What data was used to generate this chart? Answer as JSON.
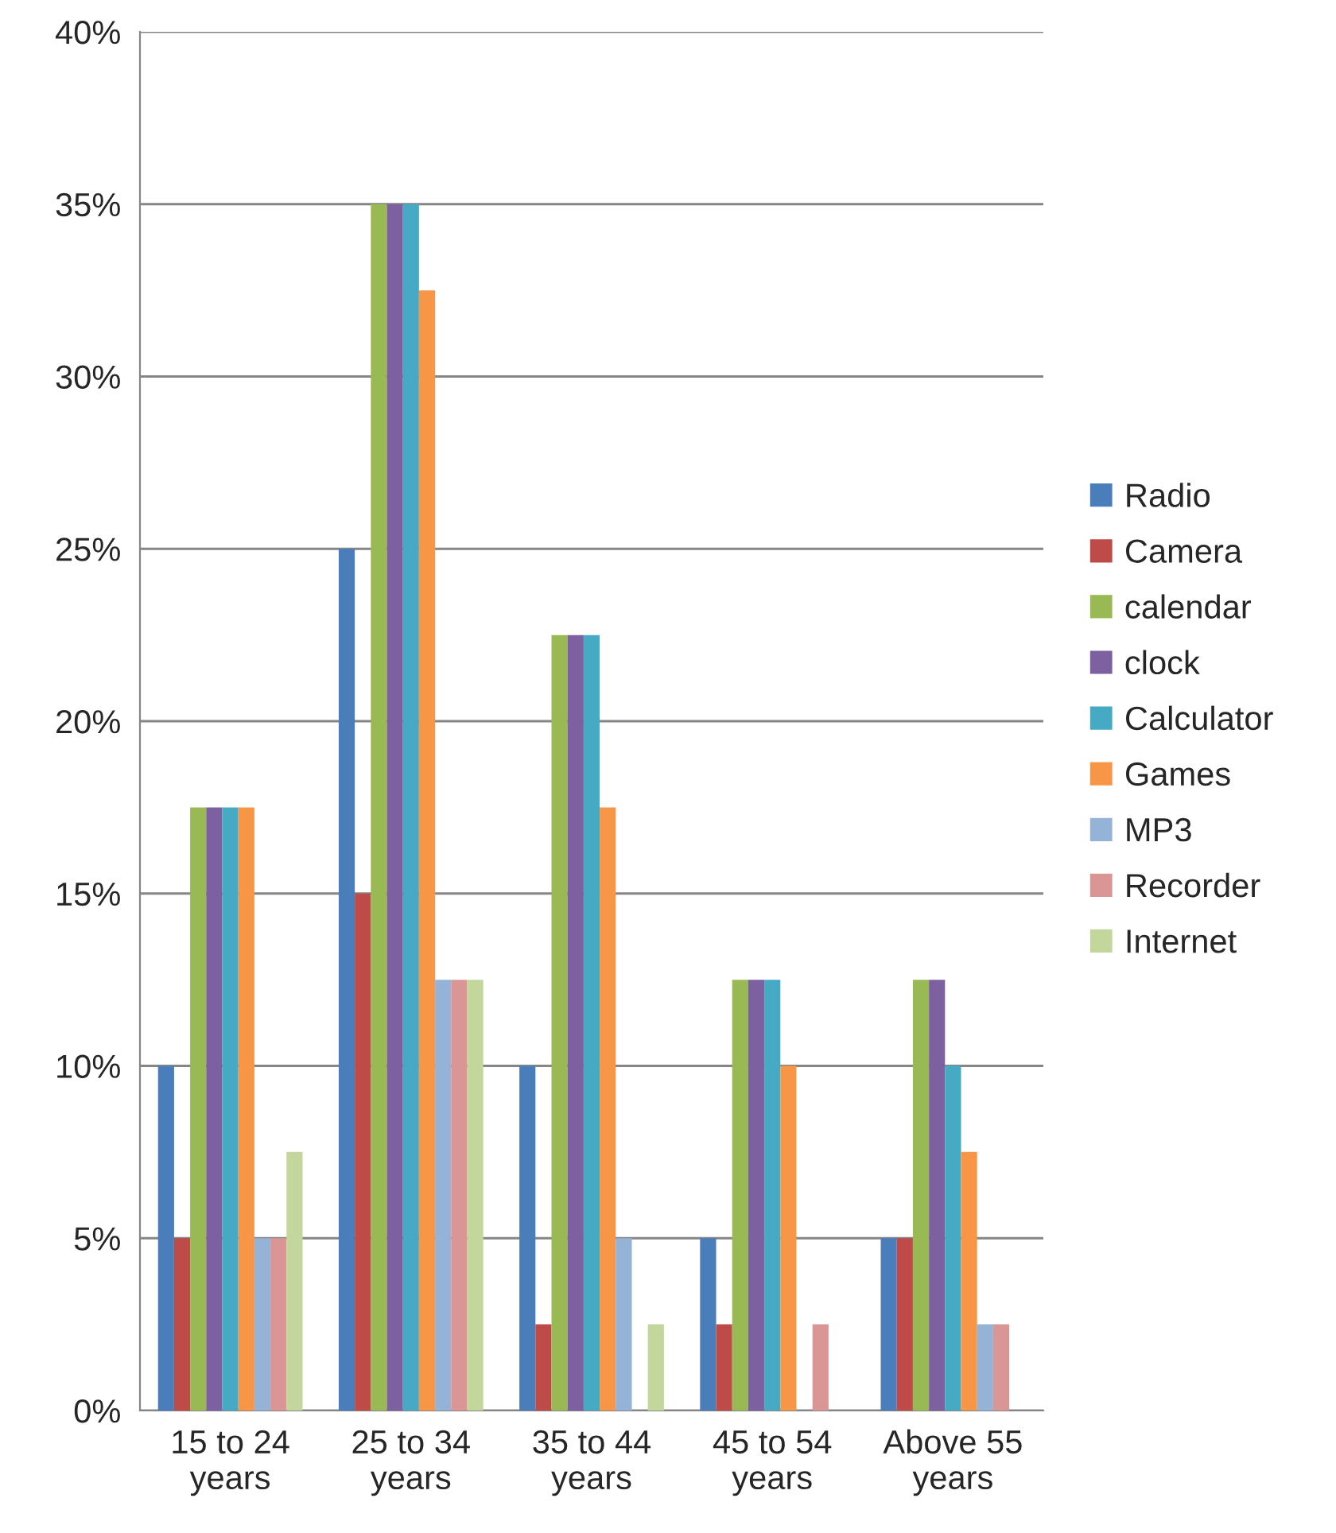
{
  "chart_data": {
    "type": "bar",
    "categories": [
      "15 to 24\nyears",
      "25 to 34\nyears",
      "35 to 44\nyears",
      "45 to 54\nyears",
      "Above 55\nyears"
    ],
    "series": [
      {
        "name": "Radio",
        "color": "#4a7ebb",
        "values": [
          10,
          25,
          10,
          5,
          5
        ]
      },
      {
        "name": "Camera",
        "color": "#be4b48",
        "values": [
          5,
          15,
          2.5,
          2.5,
          5
        ]
      },
      {
        "name": "calendar",
        "color": "#98b954",
        "values": [
          17.5,
          35,
          22.5,
          12.5,
          12.5
        ]
      },
      {
        "name": "clock",
        "color": "#7d60a0",
        "values": [
          17.5,
          35,
          22.5,
          12.5,
          12.5
        ]
      },
      {
        "name": "Calculator",
        "color": "#46aac5",
        "values": [
          17.5,
          35,
          22.5,
          12.5,
          10
        ]
      },
      {
        "name": "Games",
        "color": "#f79646",
        "values": [
          17.5,
          32.5,
          17.5,
          10,
          7.5
        ]
      },
      {
        "name": "MP3",
        "color": "#95b3d7",
        "values": [
          5,
          12.5,
          5,
          null,
          2.5
        ]
      },
      {
        "name": "Recorder",
        "color": "#d99694",
        "values": [
          5,
          12.5,
          null,
          2.5,
          2.5
        ]
      },
      {
        "name": "Internet",
        "color": "#c3d69b",
        "values": [
          7.5,
          12.5,
          2.5,
          null,
          null
        ]
      }
    ],
    "ylim": [
      0,
      40
    ],
    "yticks": [
      {
        "value": 0,
        "label": "0%"
      },
      {
        "value": 5,
        "label": "5%"
      },
      {
        "value": 10,
        "label": "10%"
      },
      {
        "value": 15,
        "label": "15%"
      },
      {
        "value": 20,
        "label": "20%"
      },
      {
        "value": 25,
        "label": "25%"
      },
      {
        "value": 30,
        "label": "30%"
      },
      {
        "value": 35,
        "label": "35%"
      },
      {
        "value": 40,
        "label": "40%"
      }
    ],
    "grid": "y",
    "legend": "right"
  }
}
